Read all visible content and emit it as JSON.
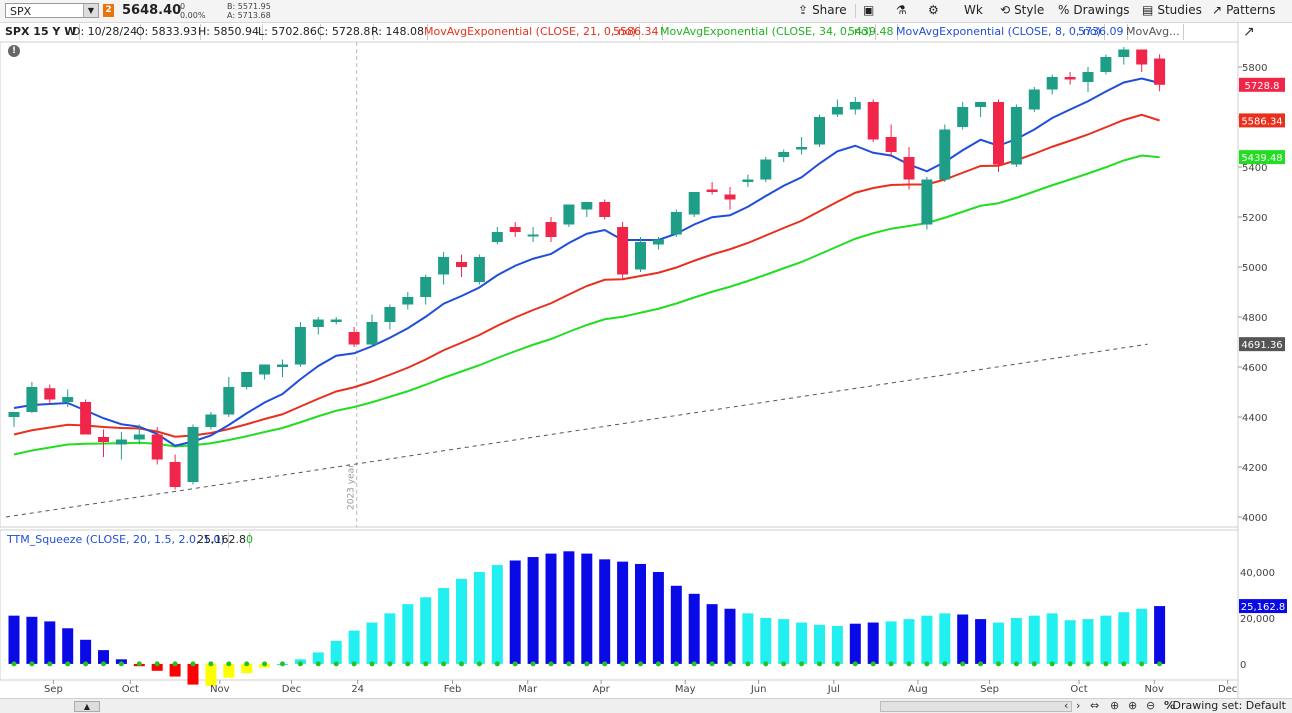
{
  "toolbar": {
    "symbol": "SPX",
    "link_badge": "2",
    "last_price": "5648.40",
    "change": "0",
    "change_pct": "0.00%",
    "bid": "B: 5571.95",
    "ask": "A: 5713.68",
    "share_label": "Share",
    "wk_label": "Wk",
    "style_label": "Style",
    "drawings_label": "Drawings",
    "studies_label": "Studies",
    "patterns_label": "Patterns"
  },
  "legend": {
    "title": "SPX 15 Y W",
    "date": "D: 10/28/24",
    "open": "O: 5833.93",
    "high": "H: 5850.94",
    "low": "L: 5702.86",
    "close": "C: 5728.8",
    "range": "R: 148.08",
    "ema21_label": "MovAvgExponential (CLOSE, 21, 0, no)",
    "ema21_value": "5586.34",
    "ema34_label": "MovAvgExponential (CLOSE, 34, 0, no)",
    "ema34_value": "5439.48",
    "ema8_label": "MovAvgExponential (CLOSE, 8, 0, no)",
    "ema8_value": "5736.09",
    "more_label": "MovAvg..."
  },
  "squeeze_legend": {
    "label": "TTM_Squeeze (CLOSE, 20, 1.5, 2.0, 1.0)",
    "value": "25,162.8",
    "signal": "0"
  },
  "bottom": {
    "drawing_set": "Drawing set: Default"
  },
  "colors": {
    "up": "#1e9e87",
    "down": "#f0254a",
    "ema8": "#1f4ed8",
    "ema21": "#e8301c",
    "ema34": "#22dd22",
    "sq_dark_blue": "#0a0ae6",
    "sq_cyan": "#22f0f0",
    "sq_red": "#ff0000",
    "sq_yellow": "#ffff00",
    "sq_dot": "#22c322"
  },
  "chart_data": [
    {
      "type": "candlestick",
      "title": "SPX 15 Y W",
      "ylim": [
        3960,
        5900
      ],
      "y_ticks": [
        4000,
        4200,
        4400,
        4600,
        4800,
        5000,
        5200,
        5400,
        5600,
        5800
      ],
      "x_ticks": [
        "Sep",
        "Oct",
        "Nov",
        "Dec",
        "24",
        "Feb",
        "Mar",
        "Apr",
        "May",
        "Jun",
        "Jul",
        "Aug",
        "Sep",
        "Oct",
        "Nov",
        "Dec"
      ],
      "x_tick_bar_index": [
        2.2,
        6.5,
        11.5,
        15.5,
        19.2,
        24.5,
        28.7,
        32.8,
        37.5,
        41.6,
        45.8,
        50.5,
        54.5,
        59.5,
        63.7,
        67.8
      ],
      "period_marker": "2023 year",
      "candles": [
        [
          4400,
          4420,
          4360,
          4420
        ],
        [
          4420,
          4540,
          4415,
          4520
        ],
        [
          4515,
          4530,
          4450,
          4470
        ],
        [
          4460,
          4510,
          4440,
          4480
        ],
        [
          4460,
          4470,
          4330,
          4330
        ],
        [
          4320,
          4350,
          4240,
          4300
        ],
        [
          4290,
          4340,
          4230,
          4310
        ],
        [
          4310,
          4370,
          4290,
          4330
        ],
        [
          4330,
          4360,
          4210,
          4230
        ],
        [
          4220,
          4250,
          4110,
          4120
        ],
        [
          4140,
          4370,
          4130,
          4360
        ],
        [
          4360,
          4420,
          4350,
          4410
        ],
        [
          4410,
          4560,
          4400,
          4520
        ],
        [
          4520,
          4580,
          4510,
          4580
        ],
        [
          4570,
          4610,
          4550,
          4610
        ],
        [
          4600,
          4630,
          4560,
          4610
        ],
        [
          4610,
          4780,
          4600,
          4760
        ],
        [
          4760,
          4800,
          4730,
          4790
        ],
        [
          4780,
          4800,
          4770,
          4790
        ],
        [
          4740,
          4760,
          4680,
          4690
        ],
        [
          4690,
          4810,
          4680,
          4780
        ],
        [
          4780,
          4850,
          4750,
          4840
        ],
        [
          4850,
          4900,
          4830,
          4880
        ],
        [
          4880,
          4970,
          4850,
          4960
        ],
        [
          4970,
          5060,
          4930,
          5040
        ],
        [
          5020,
          5050,
          4960,
          5000
        ],
        [
          4940,
          5050,
          4930,
          5040
        ],
        [
          5100,
          5160,
          5090,
          5140
        ],
        [
          5160,
          5180,
          5120,
          5140
        ],
        [
          5130,
          5160,
          5100,
          5130
        ],
        [
          5180,
          5200,
          5100,
          5120
        ],
        [
          5170,
          5250,
          5160,
          5250
        ],
        [
          5230,
          5260,
          5200,
          5260
        ],
        [
          5260,
          5270,
          5190,
          5200
        ],
        [
          5160,
          5180,
          4950,
          4970
        ],
        [
          4990,
          5120,
          4980,
          5100
        ],
        [
          5090,
          5120,
          5070,
          5110
        ],
        [
          5130,
          5230,
          5120,
          5220
        ],
        [
          5210,
          5300,
          5200,
          5300
        ],
        [
          5310,
          5340,
          5290,
          5300
        ],
        [
          5290,
          5320,
          5230,
          5270
        ],
        [
          5340,
          5370,
          5320,
          5350
        ],
        [
          5350,
          5440,
          5340,
          5430
        ],
        [
          5440,
          5470,
          5420,
          5460
        ],
        [
          5470,
          5520,
          5450,
          5480
        ],
        [
          5490,
          5610,
          5480,
          5600
        ],
        [
          5610,
          5670,
          5600,
          5640
        ],
        [
          5630,
          5680,
          5610,
          5660
        ],
        [
          5660,
          5670,
          5500,
          5510
        ],
        [
          5520,
          5570,
          5440,
          5460
        ],
        [
          5440,
          5480,
          5310,
          5350
        ],
        [
          5170,
          5360,
          5150,
          5350
        ],
        [
          5350,
          5570,
          5340,
          5550
        ],
        [
          5560,
          5660,
          5550,
          5640
        ],
        [
          5640,
          5660,
          5600,
          5660
        ],
        [
          5660,
          5670,
          5380,
          5410
        ],
        [
          5410,
          5650,
          5400,
          5640
        ],
        [
          5630,
          5720,
          5620,
          5710
        ],
        [
          5710,
          5770,
          5690,
          5760
        ],
        [
          5760,
          5780,
          5730,
          5750
        ],
        [
          5740,
          5800,
          5700,
          5780
        ],
        [
          5780,
          5850,
          5770,
          5840
        ],
        [
          5840,
          5880,
          5810,
          5870
        ],
        [
          5870,
          5870,
          5780,
          5810
        ],
        [
          5833.93,
          5850.94,
          5702.86,
          5728.8
        ]
      ],
      "ema8": [
        4436,
        4448,
        4452,
        4456,
        4426,
        4395,
        4371,
        4361,
        4332,
        4285,
        4302,
        4326,
        4368,
        4415,
        4458,
        4492,
        4551,
        4604,
        4645,
        4655,
        4683,
        4717,
        4755,
        4801,
        4853,
        4884,
        4918,
        4967,
        5005,
        5033,
        5052,
        5096,
        5133,
        5148,
        5108,
        5108,
        5108,
        5133,
        5170,
        5199,
        5207,
        5241,
        5284,
        5325,
        5359,
        5414,
        5463,
        5485,
        5457,
        5446,
        5410,
        5383,
        5420,
        5467,
        5509,
        5485,
        5512,
        5550,
        5596,
        5630,
        5663,
        5702,
        5738,
        5754,
        5736
      ],
      "ema21": [
        4330,
        4347,
        4358,
        4369,
        4366,
        4360,
        4356,
        4354,
        4342,
        4321,
        4326,
        4336,
        4352,
        4371,
        4392,
        4411,
        4442,
        4473,
        4502,
        4519,
        4542,
        4569,
        4597,
        4630,
        4667,
        4697,
        4728,
        4765,
        4798,
        4828,
        4855,
        4890,
        4924,
        4949,
        4951,
        4964,
        4977,
        4998,
        5025,
        5050,
        5071,
        5096,
        5126,
        5156,
        5185,
        5223,
        5261,
        5297,
        5316,
        5328,
        5330,
        5330,
        5350,
        5377,
        5404,
        5405,
        5427,
        5453,
        5481,
        5505,
        5530,
        5559,
        5588,
        5609,
        5586
      ],
      "ema34": [
        4250,
        4266,
        4278,
        4290,
        4293,
        4294,
        4295,
        4297,
        4293,
        4282,
        4287,
        4295,
        4308,
        4323,
        4340,
        4356,
        4379,
        4403,
        4425,
        4440,
        4459,
        4481,
        4503,
        4529,
        4557,
        4582,
        4607,
        4636,
        4663,
        4689,
        4712,
        4741,
        4768,
        4791,
        4801,
        4817,
        4833,
        4854,
        4878,
        4901,
        4921,
        4944,
        4969,
        4995,
        5020,
        5051,
        5082,
        5113,
        5135,
        5153,
        5164,
        5176,
        5197,
        5221,
        5245,
        5255,
        5277,
        5302,
        5327,
        5350,
        5374,
        5399,
        5426,
        5446,
        5439
      ],
      "ema_dashed": {
        "start": [
          0,
          4000
        ],
        "end": [
          63,
          4691.36
        ],
        "last_value": "4691.36"
      },
      "price_labels": [
        {
          "value": 5728.8,
          "text": "5728.8",
          "color": "#f0254a"
        },
        {
          "value": 5586.34,
          "text": "5586.34",
          "color": "#e8301c"
        },
        {
          "value": 5439.48,
          "text": "5439.48",
          "color": "#22dd22"
        },
        {
          "value": 4691.36,
          "text": "4691.36",
          "color": "#555555"
        }
      ]
    },
    {
      "type": "bar",
      "title": "TTM_Squeeze (CLOSE, 20, 1.5, 2.0, 1.0)",
      "ylim": [
        -7000,
        50000
      ],
      "y_ticks": [
        0,
        20000,
        40000
      ],
      "y_tick_labels": [
        "0",
        "20,000",
        "40,000"
      ],
      "values": [
        21000,
        20500,
        18500,
        15500,
        10500,
        6000,
        2000,
        -1000,
        -3000,
        -5500,
        -9000,
        -9500,
        -6000,
        -4000,
        -1500,
        -500,
        2000,
        5000,
        10000,
        14500,
        18000,
        22000,
        26000,
        29000,
        33000,
        37000,
        40000,
        43000,
        45000,
        46500,
        48000,
        49000,
        48000,
        45500,
        44500,
        43500,
        40000,
        34000,
        30500,
        26000,
        24000,
        22000,
        20000,
        19500,
        18000,
        17000,
        16500,
        17500,
        18000,
        18500,
        19500,
        21000,
        22000,
        21500,
        19500,
        18000,
        20000,
        21000,
        22000,
        19000,
        19500,
        21000,
        22500,
        24000,
        25162.8
      ],
      "colors": [
        "blue",
        "blue",
        "blue",
        "blue",
        "blue",
        "blue",
        "blue",
        "red",
        "red",
        "red",
        "red",
        "yellow",
        "yellow",
        "yellow",
        "yellow",
        "cyan",
        "cyan",
        "cyan",
        "cyan",
        "cyan",
        "cyan",
        "cyan",
        "cyan",
        "cyan",
        "cyan",
        "cyan",
        "cyan",
        "cyan",
        "blue",
        "blue",
        "blue",
        "blue",
        "blue",
        "blue",
        "blue",
        "blue",
        "blue",
        "blue",
        "blue",
        "blue",
        "blue",
        "cyan",
        "cyan",
        "cyan",
        "cyan",
        "cyan",
        "cyan",
        "blue",
        "blue",
        "cyan",
        "cyan",
        "cyan",
        "cyan",
        "blue",
        "blue",
        "cyan",
        "cyan",
        "cyan",
        "cyan",
        "cyan",
        "cyan",
        "cyan",
        "cyan",
        "cyan",
        "blue"
      ],
      "last_label": "25,162.8"
    }
  ]
}
